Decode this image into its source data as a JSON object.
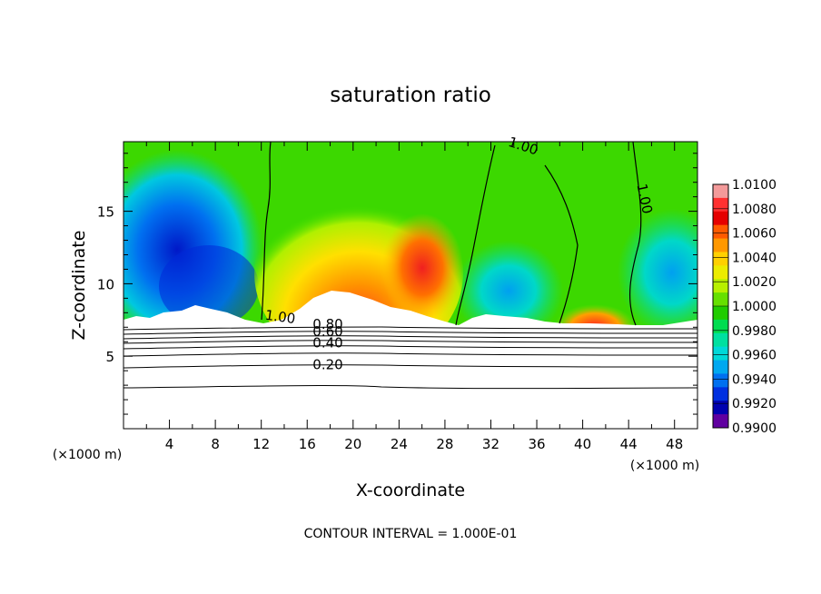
{
  "chart_data": {
    "type": "heatmap",
    "title": "saturation ratio",
    "xlabel": "X-coordinate",
    "ylabel": "Z-coordinate",
    "x_unit": "(×1000 m)",
    "y_unit": "(×1000 m)",
    "xlim": [
      0,
      50
    ],
    "ylim": [
      0,
      19.8
    ],
    "x_ticks": [
      "4",
      "8",
      "12",
      "16",
      "20",
      "24",
      "28",
      "32",
      "36",
      "40",
      "44",
      "48"
    ],
    "y_ticks": [
      "5",
      "10",
      "15"
    ],
    "footer": "CONTOUR INTERVAL = 1.000E-01",
    "colorbar": {
      "labels": [
        "1.0100",
        "1.0080",
        "1.0060",
        "1.0040",
        "1.0020",
        "1.0000",
        "0.9980",
        "0.9960",
        "0.9940",
        "0.9920",
        "0.9900"
      ],
      "colors": [
        "#f39a9a",
        "#ff3030",
        "#e50000",
        "#ff5a00",
        "#ff9800",
        "#ffd000",
        "#ecec00",
        "#b8f000",
        "#66e000",
        "#20cc00",
        "#00dd50",
        "#00e0a0",
        "#00d8d8",
        "#00a8f0",
        "#0070f0",
        "#0030e0",
        "#0000b0",
        "#6000a0"
      ]
    },
    "contour_labels": [
      {
        "text": "1.00",
        "x": 13.6,
        "y": 7.4,
        "rotate": 8
      },
      {
        "text": "1.00",
        "x": 34.7,
        "y": 19.2,
        "rotate": 18
      },
      {
        "text": "1.00",
        "x": 45.0,
        "y": 15.8,
        "rotate": 78
      },
      {
        "text": "0.80",
        "x": 17.8,
        "y": 6.9,
        "rotate": 0
      },
      {
        "text": "0.60",
        "x": 17.8,
        "y": 6.4,
        "rotate": 0
      },
      {
        "text": "0.40",
        "x": 17.8,
        "y": 5.6,
        "rotate": 0
      },
      {
        "text": "0.20",
        "x": 17.8,
        "y": 4.1,
        "rotate": 0
      }
    ]
  }
}
